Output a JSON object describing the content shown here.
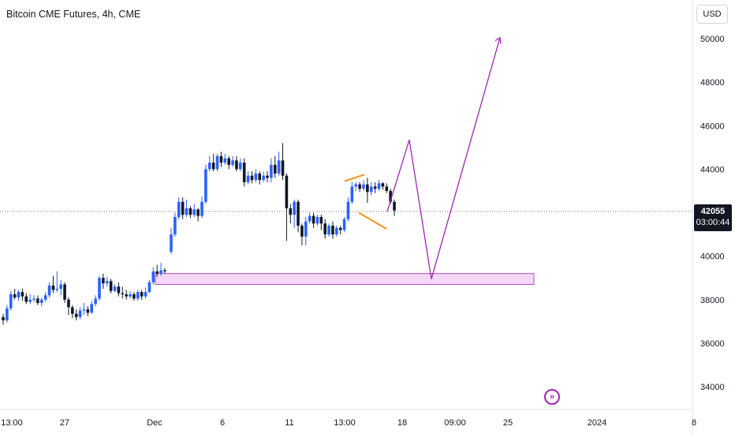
{
  "header": {
    "title": "Bitcoin CME Futures, 4h, CME"
  },
  "currency_button": {
    "label": "USD"
  },
  "price_tag": {
    "value": "42055",
    "countdown": "03:00:44"
  },
  "icons": {
    "goto_realtime": "double-chevron-right-icon"
  },
  "colors": {
    "up": "#2962ff",
    "down": "#131722",
    "projection": "#9c27b0",
    "wedge": "#f7941d",
    "zone_fill": "#f3d9f6",
    "zone_border": "#b44cc7"
  },
  "chart_data": {
    "type": "candlestick",
    "title": "Bitcoin CME Futures, 4h, CME",
    "y_axis": {
      "ticks": [
        34000,
        36000,
        38000,
        40000,
        42000,
        44000,
        46000,
        48000,
        50000
      ],
      "range": [
        32800,
        51600
      ]
    },
    "x_axis": {
      "ticks": [
        "13:00",
        "27",
        "Dec",
        "6",
        "11",
        "13:00",
        "18",
        "09:00",
        "25",
        "2024",
        "8"
      ]
    },
    "last_price": 42055,
    "candles": [
      [
        37200,
        37050,
        36850,
        37350
      ],
      [
        37050,
        37600,
        36950,
        37750
      ],
      [
        37600,
        38250,
        37500,
        38400
      ],
      [
        38250,
        38100,
        38000,
        38500
      ],
      [
        38100,
        38350,
        37950,
        38450
      ],
      [
        38350,
        38150,
        37950,
        38500
      ],
      [
        38150,
        37900,
        37800,
        38300
      ],
      [
        37900,
        38000,
        37800,
        38250
      ],
      [
        38000,
        38050,
        37900,
        38200
      ],
      [
        38050,
        37850,
        37750,
        38200
      ],
      [
        37850,
        38000,
        37700,
        38100
      ],
      [
        38000,
        38200,
        37900,
        38350
      ],
      [
        38200,
        38650,
        38100,
        38800
      ],
      [
        38650,
        38450,
        38300,
        39100
      ],
      [
        38450,
        38500,
        38350,
        39300
      ],
      [
        38500,
        38700,
        38200,
        38900
      ],
      [
        38700,
        38000,
        37850,
        38800
      ],
      [
        38000,
        37650,
        37300,
        38100
      ],
      [
        37650,
        37350,
        37150,
        37750
      ],
      [
        37350,
        37200,
        37050,
        37550
      ],
      [
        37200,
        37500,
        37100,
        37650
      ],
      [
        37500,
        37550,
        37300,
        37850
      ],
      [
        37550,
        37400,
        37250,
        37700
      ],
      [
        37400,
        37800,
        37350,
        37950
      ],
      [
        37800,
        38050,
        37700,
        38200
      ],
      [
        38050,
        39000,
        37950,
        39100
      ],
      [
        39000,
        38750,
        38500,
        39200
      ],
      [
        38750,
        38850,
        38600,
        39050
      ],
      [
        38850,
        38400,
        38300,
        38950
      ],
      [
        38400,
        38600,
        38350,
        38700
      ],
      [
        38600,
        38300,
        38150,
        38800
      ],
      [
        38300,
        38250,
        38050,
        38600
      ],
      [
        38250,
        38150,
        38000,
        38450
      ],
      [
        38150,
        38250,
        38050,
        38400
      ],
      [
        38250,
        38050,
        37950,
        38350
      ],
      [
        38050,
        38350,
        37950,
        38450
      ],
      [
        38350,
        38150,
        38000,
        38450
      ],
      [
        38150,
        38350,
        38050,
        38550
      ],
      [
        38350,
        38800,
        38300,
        38900
      ],
      [
        38800,
        39300,
        38700,
        39500
      ],
      [
        39300,
        39200,
        39050,
        39600
      ],
      [
        39200,
        39350,
        39100,
        39700
      ],
      [
        39350,
        39300,
        39200,
        39450
      ],
      [
        40200,
        41000,
        40100,
        41300
      ],
      [
        41000,
        41800,
        40900,
        42000
      ],
      [
        41800,
        42500,
        41700,
        42700
      ],
      [
        42500,
        41900,
        41700,
        42700
      ],
      [
        41900,
        42200,
        41800,
        42600
      ],
      [
        42200,
        41900,
        41750,
        42300
      ],
      [
        41900,
        42150,
        41800,
        42400
      ],
      [
        42150,
        41850,
        41600,
        42200
      ],
      [
        41850,
        42500,
        41750,
        42750
      ],
      [
        42500,
        44000,
        42400,
        44200
      ],
      [
        44000,
        44300,
        43900,
        44600
      ],
      [
        44300,
        44000,
        43900,
        44700
      ],
      [
        44000,
        44600,
        43900,
        44700
      ],
      [
        44600,
        44300,
        44100,
        44800
      ],
      [
        44300,
        44500,
        44200,
        44700
      ],
      [
        44500,
        44200,
        44000,
        44600
      ],
      [
        44200,
        44400,
        44100,
        44600
      ],
      [
        44400,
        44000,
        43900,
        44600
      ],
      [
        44000,
        44300,
        43900,
        44500
      ],
      [
        44300,
        43400,
        43200,
        44500
      ],
      [
        43400,
        43700,
        43300,
        43900
      ],
      [
        43700,
        43500,
        43350,
        43900
      ],
      [
        43500,
        43800,
        43400,
        44000
      ],
      [
        43800,
        43500,
        43300,
        43900
      ],
      [
        43500,
        43700,
        43400,
        43900
      ],
      [
        43700,
        43600,
        43400,
        43900
      ],
      [
        43600,
        44200,
        43400,
        44500
      ],
      [
        44200,
        43800,
        43600,
        44600
      ],
      [
        43800,
        44400,
        43700,
        44800
      ],
      [
        44400,
        43700,
        43500,
        45200
      ],
      [
        43700,
        42200,
        40700,
        43800
      ],
      [
        42200,
        41900,
        41500,
        42400
      ],
      [
        41900,
        42500,
        41300,
        42600
      ],
      [
        42500,
        41400,
        41100,
        42600
      ],
      [
        41400,
        40900,
        40500,
        41500
      ],
      [
        40900,
        41600,
        40500,
        41800
      ],
      [
        41600,
        41850,
        41500,
        42000
      ],
      [
        41850,
        41500,
        41300,
        42000
      ],
      [
        41500,
        41800,
        41400,
        41900
      ],
      [
        41800,
        41500,
        41200,
        41900
      ],
      [
        41500,
        41000,
        40800,
        41700
      ],
      [
        41000,
        41400,
        40900,
        41500
      ],
      [
        41400,
        41000,
        40800,
        41600
      ],
      [
        41000,
        41300,
        40900,
        41400
      ],
      [
        41300,
        41200,
        41000,
        41400
      ],
      [
        41200,
        41700,
        41100,
        41800
      ],
      [
        41700,
        42500,
        41600,
        42700
      ],
      [
        42500,
        43200,
        42400,
        43400
      ],
      [
        43200,
        43300,
        43000,
        43400
      ],
      [
        43300,
        43100,
        42950,
        43400
      ],
      [
        43100,
        43300,
        43000,
        43500
      ],
      [
        43300,
        42950,
        42450,
        43600
      ],
      [
        42950,
        43200,
        42800,
        43400
      ],
      [
        43200,
        43100,
        42900,
        43400
      ],
      [
        43100,
        43350,
        43000,
        43500
      ],
      [
        43350,
        43200,
        43050,
        43400
      ],
      [
        43200,
        43000,
        42900,
        43350
      ],
      [
        43000,
        42500,
        42400,
        43100
      ],
      [
        42500,
        42100,
        41850,
        42600
      ]
    ],
    "drawings": {
      "demand_zone": {
        "low": 38700,
        "high": 39200
      },
      "wedge": {
        "upper": [
          43450,
          43750
        ],
        "lower": [
          42000,
          41250
        ]
      },
      "projection_path": [
        42050,
        45350,
        38950,
        50050
      ]
    }
  }
}
